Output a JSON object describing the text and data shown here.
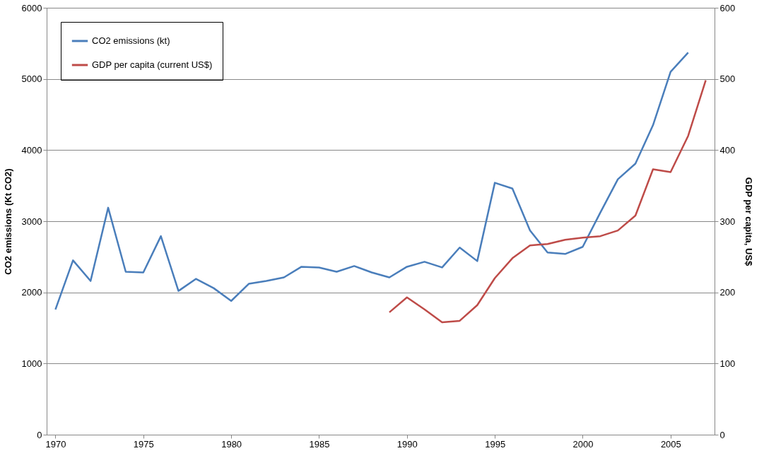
{
  "chart_data": {
    "type": "line",
    "ylabel": "CO2 emissions (Kt CO2)",
    "y2label": "GDP per capita, US$",
    "xlim": [
      1969.5,
      2007.5
    ],
    "xticks": [
      1970,
      1975,
      1980,
      1985,
      1990,
      1995,
      2000,
      2005
    ],
    "ylim": [
      0,
      6000
    ],
    "yticks": [
      0,
      1000,
      2000,
      3000,
      4000,
      5000,
      6000
    ],
    "y2lim": [
      0,
      600
    ],
    "y2ticks": [
      0,
      100,
      200,
      300,
      400,
      500,
      600
    ],
    "grid": "y",
    "legend": "top left",
    "marker": "none",
    "line_style": "solid",
    "series": [
      {
        "name": "CO2 emissions (kt)",
        "color": "#4a7ebb",
        "x": [
          1970,
          1971,
          1972,
          1973,
          1974,
          1975,
          1976,
          1977,
          1978,
          1979,
          1980,
          1981,
          1982,
          1983,
          1984,
          1985,
          1986,
          1987,
          1988,
          1989,
          1990,
          1991,
          1992,
          1993,
          1994,
          1995,
          1996,
          1997,
          1998,
          1999,
          2000,
          2001,
          2002,
          2003,
          2004,
          2005,
          2006
        ],
        "values": [
          1760,
          2450,
          2160,
          3190,
          2290,
          2280,
          2790,
          2020,
          2190,
          2060,
          1880,
          2120,
          2160,
          2210,
          2360,
          2350,
          2290,
          2370,
          2280,
          2210,
          2360,
          2430,
          2350,
          2630,
          2440,
          3540,
          3460,
          2870,
          2560,
          2540,
          2640,
          3120,
          3590,
          3810,
          4350,
          5100,
          5370
        ]
      },
      {
        "name": "GDP per capita (current US$)",
        "color": "#be4b48",
        "axis": "y2",
        "x": [
          1989,
          1990,
          1991,
          1992,
          1993,
          1994,
          1995,
          1996,
          1997,
          1998,
          1999,
          2000,
          2001,
          2002,
          2003,
          2004,
          2005,
          2006,
          2007
        ],
        "values": [
          172,
          193,
          176,
          158,
          160,
          182,
          220,
          248,
          266,
          268,
          274,
          277,
          279,
          287,
          308,
          373,
          369,
          420,
          498
        ]
      }
    ]
  }
}
